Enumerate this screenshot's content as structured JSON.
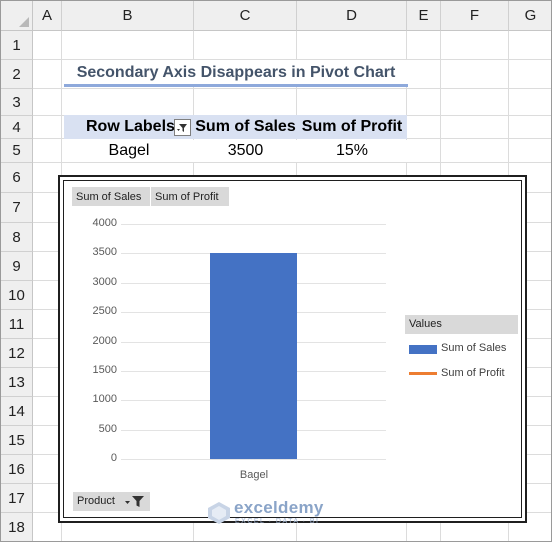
{
  "sheet": {
    "columns": [
      "A",
      "B",
      "C",
      "D",
      "E",
      "F",
      "G"
    ],
    "rows": [
      "1",
      "2",
      "3",
      "4",
      "5",
      "6",
      "7",
      "8",
      "9",
      "10",
      "11",
      "12",
      "13",
      "14",
      "15",
      "16",
      "17",
      "18"
    ]
  },
  "title": "Secondary Axis Disappears in Pivot Chart",
  "pivot_table": {
    "headers": [
      "Row Labels",
      "Sum of Sales",
      "Sum of Profit"
    ],
    "row": [
      "Bagel",
      "3500",
      "15%"
    ]
  },
  "chart": {
    "field_buttons": [
      "Sum of Sales",
      "Sum of Profit"
    ],
    "legend_title": "Values",
    "legend_items": [
      {
        "label": "Sum of Sales",
        "color": "#4472c4"
      },
      {
        "label": "Sum of Profit",
        "color": "#ed7d31"
      }
    ],
    "axis_field_button": "Product"
  },
  "chart_data": {
    "type": "bar",
    "categories": [
      "Bagel"
    ],
    "series": [
      {
        "name": "Sum of Sales",
        "values": [
          3500
        ],
        "color": "#4472c4"
      }
    ],
    "yticks": [
      0,
      500,
      1000,
      1500,
      2000,
      2500,
      3000,
      3500,
      4000
    ],
    "ylim": [
      0,
      4000
    ],
    "grid": true,
    "legend": "right"
  },
  "watermark": {
    "name": "exceldemy",
    "sub": "EXCEL · DATA · BI"
  }
}
